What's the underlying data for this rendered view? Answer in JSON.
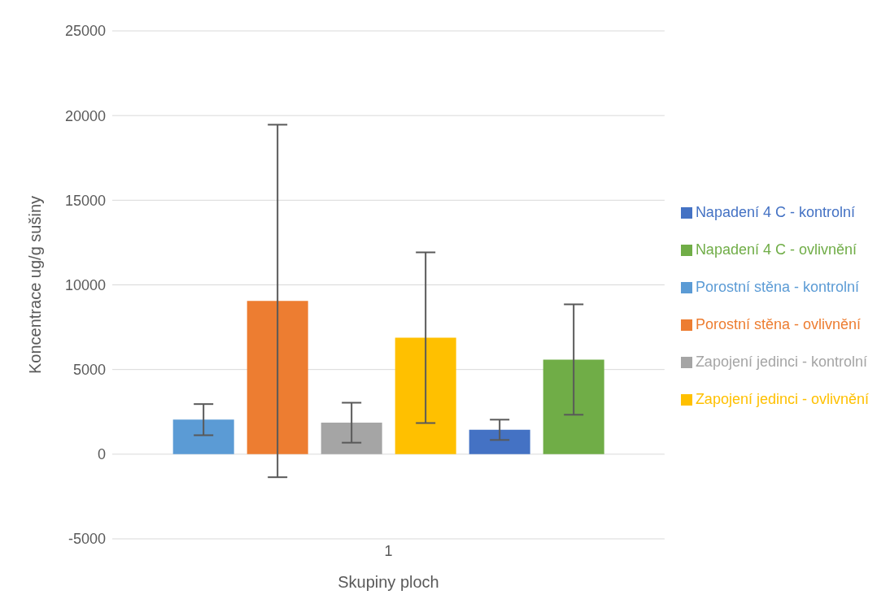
{
  "chart_data": {
    "type": "bar",
    "xlabel": "Skupiny ploch",
    "ylabel": "Koncentrace ug/g sušiny",
    "categories": [
      "1"
    ],
    "series": [
      {
        "name": "Porostní stěna - kontrolní",
        "color": "#5b9bd5",
        "values": [
          2040
        ],
        "errors": [
          920
        ]
      },
      {
        "name": "Porostní stěna - ovlivnění",
        "color": "#ed7d31",
        "values": [
          9050
        ],
        "errors": [
          10410
        ]
      },
      {
        "name": "Zapojení jedinci - kontrolní",
        "color": "#a5a5a5",
        "values": [
          1860
        ],
        "errors": [
          1180
        ]
      },
      {
        "name": "Zapojení jedinci - ovlivnění",
        "color": "#ffc000",
        "values": [
          6880
        ],
        "errors": [
          5040
        ]
      },
      {
        "name": "Napadení 4 C - kontrolní",
        "color": "#4472c4",
        "values": [
          1440
        ],
        "errors": [
          600
        ]
      },
      {
        "name": "Napadení 4 C - ovlivnění",
        "color": "#70ad47",
        "values": [
          5590
        ],
        "errors": [
          3260
        ]
      }
    ],
    "ylim": [
      -5000,
      25000
    ],
    "yticks": [
      -5000,
      0,
      5000,
      10000,
      15000,
      20000,
      25000
    ],
    "grid": "y",
    "legend": "right"
  }
}
